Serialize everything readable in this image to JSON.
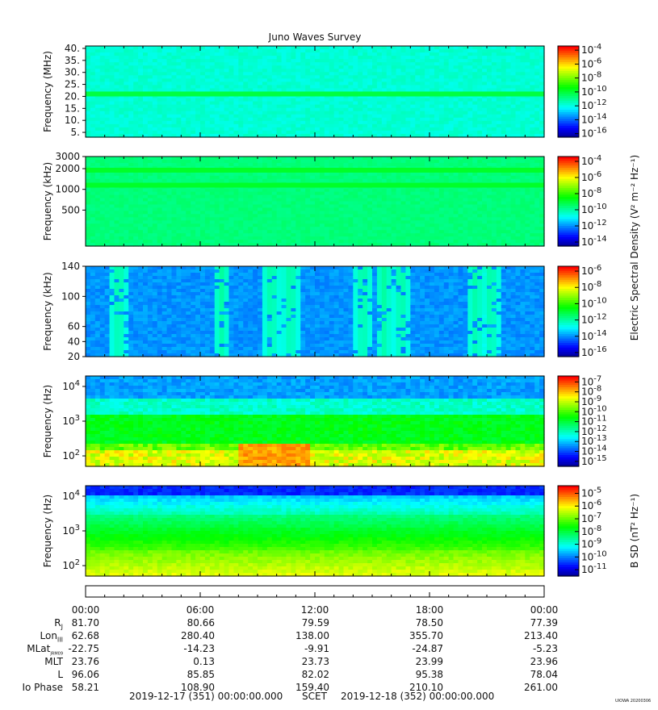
{
  "title": "Juno Waves Survey",
  "colors": [
    "#00008a",
    "#0000ff",
    "#0080ff",
    "#00ffff",
    "#00ff80",
    "#00ff00",
    "#80ff00",
    "#ffff00",
    "#ff8000",
    "#ff0000"
  ],
  "chart_data": [
    {
      "type": "heatmap",
      "panel": "HFR high",
      "ylabel": "Frequency (MHz)",
      "yticks": [
        "40.",
        "35.",
        "30.",
        "25.",
        "20.",
        "15.",
        "10.",
        "5."
      ],
      "ytick_values": [
        40,
        35,
        30,
        25,
        20,
        15,
        10,
        5
      ],
      "ylim": [
        3,
        41
      ],
      "yscale": "linear",
      "colorbar": {
        "ticks": [
          "10^-4",
          "10^-6",
          "10^-8",
          "10^-10",
          "10^-12",
          "10^-14",
          "10^-16"
        ],
        "exponents": [
          -4,
          -6,
          -8,
          -10,
          -12,
          -14,
          -16
        ]
      },
      "dominant_level": 0.37,
      "features": [
        {
          "y": 21,
          "level": 0.5,
          "kind": "band"
        }
      ]
    },
    {
      "type": "heatmap",
      "panel": "HFR low",
      "ylabel": "Frequency (kHz)",
      "yticks": [
        "3000",
        "2000",
        "1000",
        "500"
      ],
      "ytick_values": [
        3000,
        2000,
        1000,
        500
      ],
      "ylim": [
        150,
        3000
      ],
      "yscale": "log",
      "colorbar": {
        "ticks": [
          "10^-4",
          "10^-6",
          "10^-8",
          "10^-10",
          "10^-12",
          "10^-14"
        ],
        "exponents": [
          -4,
          -6,
          -8,
          -10,
          -12,
          -14
        ]
      },
      "dominant_level": 0.45,
      "features": [
        {
          "y": 1900,
          "level": 0.52,
          "kind": "band"
        },
        {
          "y": 1150,
          "level": 0.52,
          "kind": "band"
        }
      ]
    },
    {
      "type": "heatmap",
      "panel": "LFR high",
      "ylabel": "Frequency (kHz)",
      "yticks": [
        "140",
        "100",
        "60",
        "40",
        "20"
      ],
      "ytick_values": [
        140,
        100,
        60,
        40,
        20
      ],
      "ylim": [
        20,
        140
      ],
      "yscale": "linear",
      "colorbar": {
        "ticks": [
          "10^-6",
          "10^-8",
          "10^-10",
          "10^-12",
          "10^-14",
          "10^-16"
        ],
        "exponents": [
          -6,
          -8,
          -10,
          -12,
          -14,
          -16
        ]
      },
      "colorbar_title": "Electric Spectral Density (V^2 m^-2 Hz^-1)",
      "dominant_level": 0.24,
      "bursts_hours": [
        1.6,
        7.0,
        9.6,
        10.6,
        14.4,
        15.5,
        16.4,
        20.3,
        21.1
      ]
    },
    {
      "type": "heatmap",
      "panel": "LFR low E",
      "ylabel": "Frequency (Hz)",
      "yticks": [
        "10^4",
        "10^3",
        "10^2"
      ],
      "ytick_values": [
        10000,
        1000,
        100
      ],
      "ylim": [
        50,
        20000
      ],
      "yscale": "log",
      "colorbar": {
        "ticks": [
          "10^-7",
          "10^-8",
          "10^-9",
          "10^-10",
          "10^-11",
          "10^-12",
          "10^-13",
          "10^-14",
          "10^-15"
        ],
        "exponents": [
          -7,
          -8,
          -9,
          -10,
          -11,
          -12,
          -13,
          -14,
          -15
        ]
      },
      "hot_interval_hours": [
        [
          8.0,
          11.5
        ]
      ]
    },
    {
      "type": "heatmap",
      "panel": "LFR low B",
      "ylabel": "Frequency (Hz)",
      "yticks": [
        "10^4",
        "10^3",
        "10^2"
      ],
      "ytick_values": [
        10000,
        1000,
        100
      ],
      "ylim": [
        50,
        20000
      ],
      "yscale": "log",
      "colorbar": {
        "ticks": [
          "10^-5",
          "10^-6",
          "10^-7",
          "10^-8",
          "10^-9",
          "10^-10",
          "10^-11"
        ],
        "exponents": [
          -5,
          -6,
          -7,
          -8,
          -9,
          -10,
          -11
        ]
      },
      "colorbar_title": "B SD (nT^2 Hz^-1)"
    }
  ],
  "time_axis": {
    "labels": [
      "00:00",
      "06:00",
      "12:00",
      "18:00",
      "00:00"
    ],
    "hours": [
      0,
      6,
      12,
      18,
      24
    ],
    "xlim_hours": [
      0,
      24
    ]
  },
  "ephemeris": {
    "rows": [
      {
        "label": "R",
        "sub": "J",
        "values": [
          "81.70",
          "80.66",
          "79.59",
          "78.50",
          "77.39"
        ]
      },
      {
        "label": "Lon",
        "sub": "III",
        "values": [
          "62.68",
          "280.40",
          "138.00",
          "355.70",
          "213.40"
        ]
      },
      {
        "label": "MLat",
        "sub": "JRM09",
        "values": [
          "-22.75",
          "-14.23",
          "-9.91",
          "-24.87",
          "-5.23"
        ]
      },
      {
        "label": "MLT",
        "sub": "",
        "values": [
          "23.76",
          "0.13",
          "23.73",
          "23.99",
          "23.96"
        ]
      },
      {
        "label": "L",
        "sub": "",
        "values": [
          "96.06",
          "85.85",
          "82.02",
          "95.38",
          "78.04"
        ]
      },
      {
        "label": "Io Phase",
        "sub": "",
        "values": [
          "58.21",
          "108.90",
          "159.40",
          "210.10",
          "261.00"
        ]
      }
    ]
  },
  "footer": {
    "start": "2019-12-17 (351) 00:00:00.000",
    "middle": "SCET",
    "end": "2019-12-18 (352) 00:00:00.000"
  },
  "stamp": "UIOWA 20200306"
}
